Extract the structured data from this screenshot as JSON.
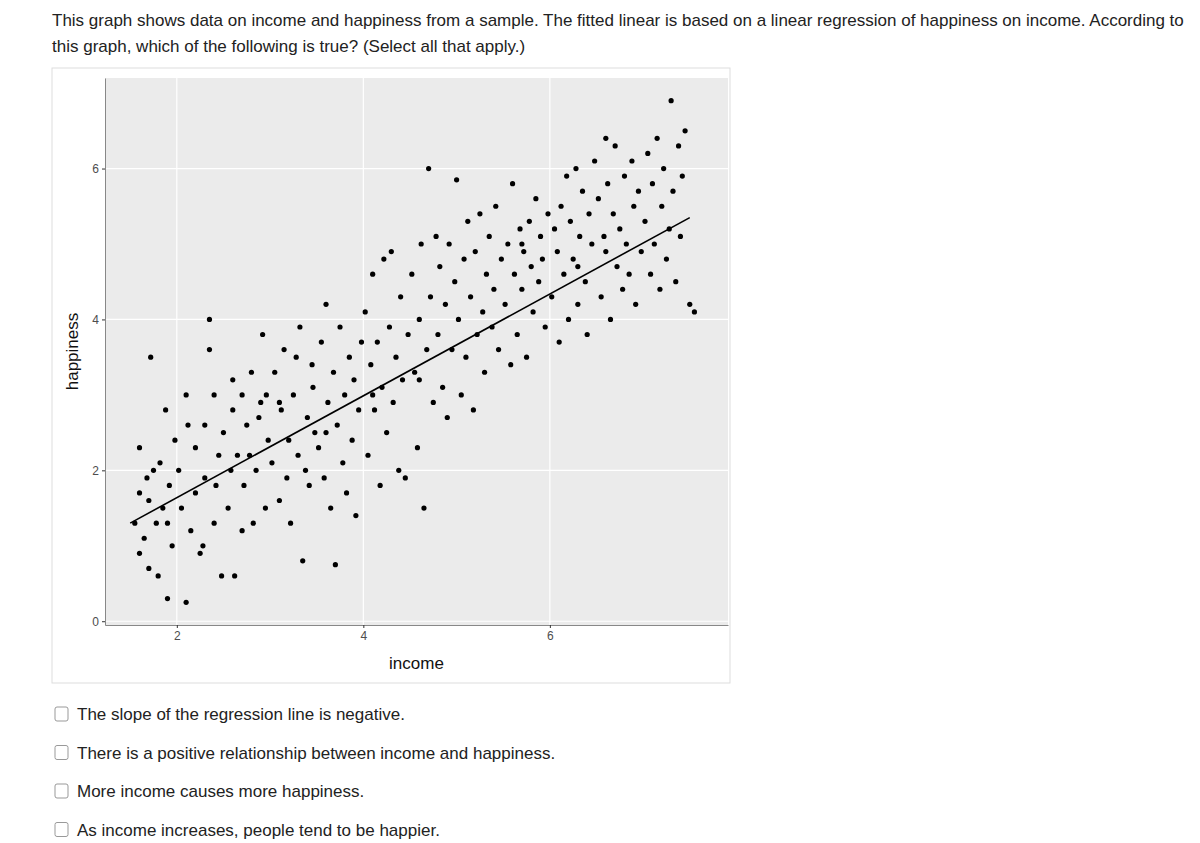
{
  "question": [
    "This graph shows data on income and happiness from a sample. The fitted linear is based on a linear regression of happiness on income. According to",
    "this graph, which of the following is true? (Select all that apply.)"
  ],
  "chart_data": {
    "type": "scatter",
    "x_label": "income",
    "y_label": "happiness",
    "xlim": [
      1.23,
      7.91
    ],
    "ylim": [
      -0.05,
      7.2
    ],
    "xticks": [
      2,
      4,
      6
    ],
    "yticks": [
      0,
      2,
      4,
      6
    ],
    "grid": true,
    "series": [
      {
        "type": "scatter",
        "color": "#000000",
        "marker": "circle",
        "x": [
          1.55,
          1.6,
          1.6,
          1.65,
          1.7,
          1.72,
          1.75,
          1.78,
          1.8,
          1.85,
          1.88,
          1.9,
          1.92,
          1.95,
          1.98,
          1.6,
          1.7,
          1.82,
          1.68,
          1.9,
          2.02,
          2.05,
          2.1,
          2.1,
          2.15,
          2.2,
          2.25,
          2.3,
          2.35,
          2.35,
          2.4,
          2.45,
          2.48,
          2.3,
          2.2,
          2.4,
          2.12,
          2.28,
          2.42,
          2.5,
          2.55,
          2.6,
          2.62,
          2.65,
          2.7,
          2.72,
          2.75,
          2.8,
          2.82,
          2.85,
          2.9,
          2.92,
          2.95,
          2.98,
          2.6,
          2.7,
          2.88,
          2.78,
          2.58,
          2.96,
          3.02,
          3.05,
          3.1,
          3.12,
          3.15,
          3.2,
          3.22,
          3.25,
          3.3,
          3.32,
          3.35,
          3.4,
          3.42,
          3.45,
          3.48,
          3.1,
          3.28,
          3.38,
          3.18,
          3.46,
          3.52,
          3.55,
          3.58,
          3.6,
          3.62,
          3.65,
          3.68,
          3.7,
          3.72,
          3.75,
          3.78,
          3.8,
          3.82,
          3.85,
          3.88,
          3.9,
          3.92,
          3.95,
          3.98,
          3.6,
          4.02,
          4.05,
          4.08,
          4.1,
          4.12,
          4.15,
          4.18,
          4.2,
          4.22,
          4.25,
          4.28,
          4.3,
          4.32,
          4.35,
          4.38,
          4.4,
          4.42,
          4.45,
          4.48,
          4.1,
          4.52,
          4.55,
          4.58,
          4.6,
          4.62,
          4.65,
          4.68,
          4.7,
          4.72,
          4.75,
          4.78,
          4.8,
          4.82,
          4.85,
          4.88,
          4.9,
          4.92,
          4.95,
          4.98,
          4.6,
          5.0,
          5.02,
          5.05,
          5.08,
          5.1,
          5.12,
          5.15,
          5.18,
          5.2,
          5.22,
          5.25,
          5.28,
          5.3,
          5.32,
          5.35,
          5.38,
          5.4,
          5.42,
          5.45,
          5.48,
          5.52,
          5.55,
          5.58,
          5.6,
          5.62,
          5.65,
          5.68,
          5.7,
          5.72,
          5.75,
          5.78,
          5.8,
          5.82,
          5.85,
          5.88,
          5.9,
          5.92,
          5.95,
          5.98,
          5.7,
          6.02,
          6.05,
          6.08,
          6.1,
          6.12,
          6.15,
          6.18,
          6.2,
          6.22,
          6.25,
          6.28,
          6.3,
          6.32,
          6.35,
          6.38,
          6.4,
          6.42,
          6.45,
          6.48,
          6.3,
          6.52,
          6.55,
          6.58,
          6.6,
          6.62,
          6.65,
          6.68,
          6.7,
          6.72,
          6.75,
          6.78,
          6.8,
          6.82,
          6.85,
          6.88,
          6.9,
          6.92,
          6.95,
          6.98,
          6.6,
          7.02,
          7.05,
          7.08,
          7.1,
          7.12,
          7.15,
          7.18,
          7.2,
          7.22,
          7.25,
          7.28,
          7.3,
          7.32,
          7.35,
          7.38,
          7.4,
          7.42,
          7.45,
          7.5,
          7.55
        ],
        "values": [
          1.3,
          2.3,
          0.9,
          1.1,
          1.6,
          3.5,
          2.0,
          1.3,
          0.6,
          1.5,
          2.8,
          0.3,
          1.8,
          1.0,
          2.4,
          1.7,
          0.7,
          2.1,
          1.9,
          1.3,
          2.0,
          1.5,
          0.25,
          3.0,
          1.2,
          2.3,
          0.9,
          1.9,
          4.0,
          3.6,
          1.3,
          2.2,
          0.6,
          2.6,
          1.7,
          3.0,
          2.6,
          1.0,
          1.8,
          2.5,
          1.5,
          2.8,
          0.6,
          2.2,
          3.0,
          1.8,
          2.6,
          3.3,
          1.3,
          2.0,
          2.9,
          3.8,
          1.5,
          2.4,
          3.2,
          1.2,
          2.7,
          2.2,
          2.0,
          3.0,
          2.1,
          3.3,
          1.6,
          2.8,
          3.6,
          2.4,
          1.3,
          3.0,
          2.2,
          3.9,
          0.8,
          2.7,
          1.8,
          3.4,
          2.5,
          2.9,
          3.5,
          2.0,
          1.9,
          3.1,
          2.3,
          3.7,
          1.9,
          4.2,
          2.9,
          1.5,
          3.3,
          0.75,
          2.6,
          3.9,
          2.1,
          3.0,
          1.7,
          3.5,
          2.4,
          3.2,
          1.4,
          2.8,
          3.7,
          2.5,
          4.1,
          2.2,
          3.4,
          4.6,
          2.8,
          3.7,
          1.8,
          3.1,
          4.8,
          2.5,
          3.9,
          4.9,
          2.9,
          3.5,
          2.0,
          4.3,
          3.2,
          1.9,
          3.8,
          3.0,
          4.6,
          3.3,
          2.3,
          4.0,
          5.0,
          1.5,
          3.6,
          6.0,
          4.3,
          2.9,
          5.1,
          3.8,
          4.7,
          3.1,
          4.2,
          2.7,
          5.0,
          3.6,
          4.5,
          3.2,
          5.85,
          4.0,
          3.0,
          4.8,
          3.5,
          5.3,
          4.3,
          2.8,
          4.9,
          3.8,
          5.4,
          4.1,
          3.3,
          4.6,
          5.1,
          3.9,
          4.4,
          5.5,
          3.6,
          4.8,
          4.2,
          5.0,
          3.4,
          5.8,
          4.6,
          3.8,
          5.2,
          4.4,
          4.9,
          3.5,
          5.3,
          4.7,
          4.1,
          5.6,
          4.5,
          5.1,
          4.8,
          3.9,
          5.4,
          5.0,
          4.3,
          5.2,
          4.9,
          3.7,
          5.5,
          4.6,
          5.9,
          4.0,
          5.3,
          4.8,
          6.0,
          4.2,
          5.1,
          5.7,
          4.5,
          3.8,
          5.4,
          5.0,
          6.1,
          4.7,
          5.6,
          4.3,
          5.1,
          4.9,
          5.8,
          4.0,
          5.4,
          6.3,
          4.7,
          5.2,
          4.4,
          5.9,
          5.0,
          4.6,
          6.1,
          5.5,
          4.2,
          5.7,
          4.9,
          6.4,
          5.3,
          6.2,
          4.6,
          5.8,
          5.0,
          6.4,
          4.4,
          5.5,
          6.0,
          4.8,
          5.2,
          6.9,
          5.7,
          4.5,
          6.3,
          5.1,
          5.9,
          6.5,
          4.2,
          4.1
        ]
      },
      {
        "type": "line",
        "color": "#000000",
        "line_style": "solid",
        "x": [
          1.5,
          7.5
        ],
        "values": [
          1.3,
          5.35
        ]
      }
    ]
  },
  "options": [
    "The slope of the regression line is negative.",
    "There is a positive relationship between income and happiness.",
    "More income causes more happiness.",
    "As income increases, people tend to be happier."
  ]
}
